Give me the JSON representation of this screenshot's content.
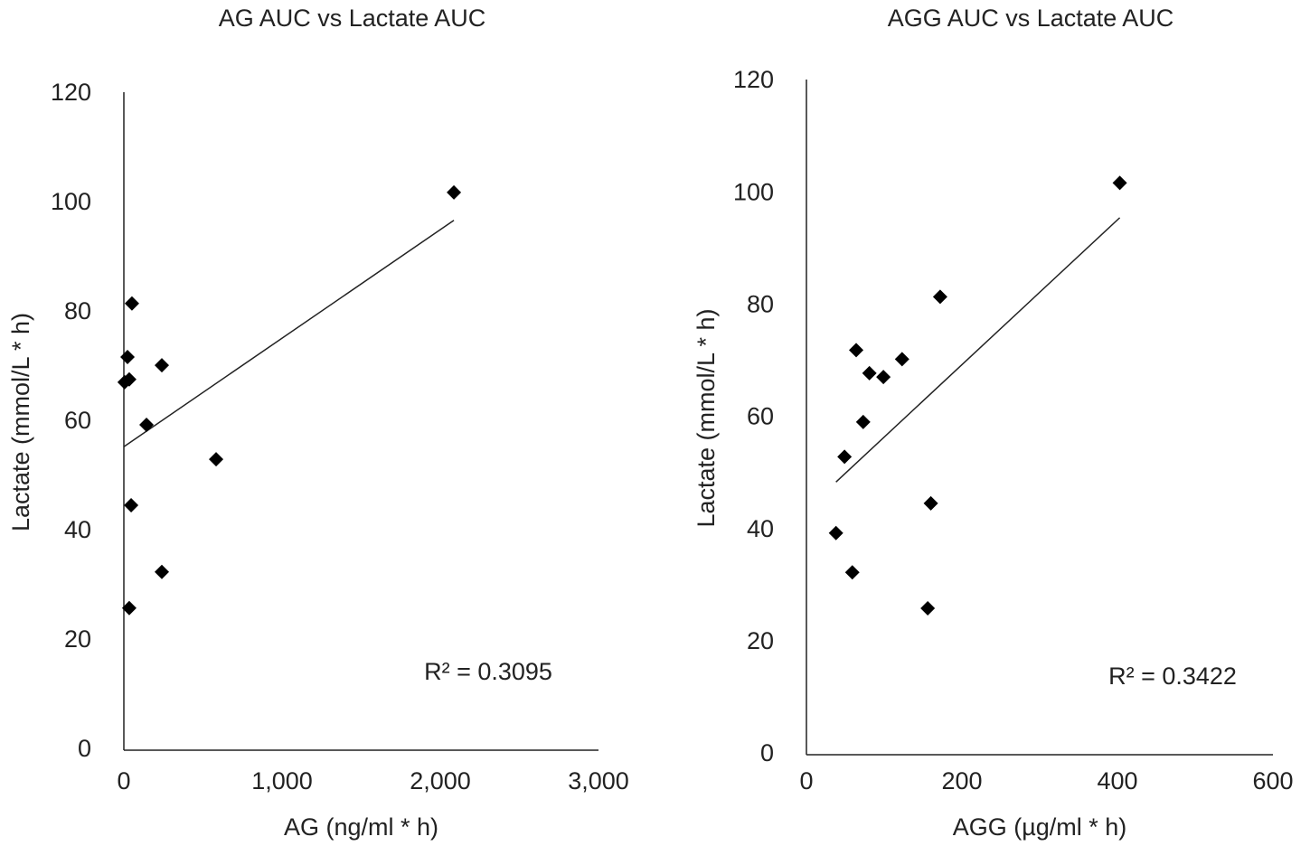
{
  "chart_data": [
    {
      "type": "scatter",
      "title": "AG AUC vs Lactate AUC",
      "x_label": "AG (ng/ml * h)",
      "y_label": "Lactate (mmol/L * h)",
      "color": "#000000",
      "x": [
        2086,
        51,
        23,
        240,
        34,
        5,
        143,
        583,
        46,
        240,
        34
      ],
      "values": [
        102.0,
        81.7,
        71.9,
        70.4,
        67.8,
        67.3,
        59.5,
        53.2,
        44.8,
        32.6,
        26.0
      ],
      "trendline": {
        "x": [
          0,
          2086
        ],
        "y": [
          55.5,
          96.9
        ]
      },
      "annotation": "R² = 0.3095",
      "xlim": [
        0,
        3000
      ],
      "xticks": [
        0,
        {
          "value": 1000,
          "label": "1,000"
        },
        {
          "value": 2000,
          "label": "2,000"
        },
        {
          "value": 3000,
          "label": "3,000"
        }
      ],
      "ylim": [
        0,
        120
      ],
      "yticks": [
        0,
        20,
        40,
        60,
        80,
        100,
        120
      ],
      "grid": false
    },
    {
      "type": "scatter",
      "title": "AGG AUC vs Lactate AUC",
      "x_label": "AGG (µg/ml * h)",
      "y_label": "Lactate (mmol/L * h)",
      "color": "#000000",
      "x": [
        403,
        172,
        64,
        123,
        81,
        99,
        73,
        49,
        160,
        38,
        59,
        156
      ],
      "values": [
        101.9,
        81.6,
        72.1,
        70.5,
        68.0,
        67.3,
        59.3,
        53.1,
        44.8,
        39.5,
        32.5,
        26.1
      ],
      "trendline": {
        "x": [
          38,
          403
        ],
        "y": [
          48.6,
          95.7
        ]
      },
      "annotation": "R² = 0.3422",
      "xlim": [
        0,
        600
      ],
      "xticks": [
        0,
        200,
        400,
        600
      ],
      "ylim": [
        0,
        120
      ],
      "yticks": [
        0,
        20,
        40,
        60,
        80,
        100,
        120
      ],
      "grid": false
    }
  ]
}
